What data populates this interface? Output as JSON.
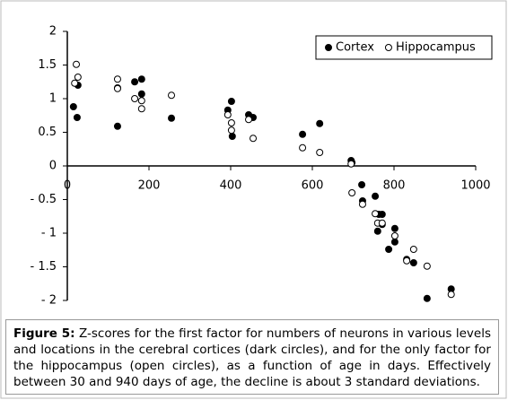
{
  "chart_data": {
    "type": "scatter",
    "caption_label": "Figure 5:",
    "caption": "Z-scores for the first factor for numbers of neurons in various levels and locations in the cerebral cortices (dark circles), and for the only factor for the hippocampus (open circles), as a function of age in days. Effectively between 30 and 940 days of age, the decline is about 3 standard deviations.",
    "xlim": [
      0,
      1000
    ],
    "xticks": [
      0,
      200,
      400,
      600,
      800,
      1000
    ],
    "ylim": [
      -2,
      2
    ],
    "yticks": [
      {
        "value": -2,
        "label": "- 2"
      },
      {
        "value": -1.5,
        "label": "- 1.5"
      },
      {
        "value": -1,
        "label": "- 1"
      },
      {
        "value": -0.5,
        "label": "- 0.5"
      },
      0,
      0.5,
      1,
      1.5,
      2
    ],
    "legend": "top-right",
    "series": [
      {
        "name": "Cortex",
        "color": "#000000",
        "filled": true,
        "x": [
          15,
          24,
          26,
          123,
          123,
          165,
          182,
          182,
          255,
          393,
          402,
          404,
          444,
          455,
          576,
          618,
          695,
          697,
          721,
          723,
          754,
          760,
          763,
          771,
          771,
          802,
          802,
          787,
          831,
          848,
          881,
          940
        ],
        "values": [
          0.88,
          0.72,
          1.2,
          0.59,
          1.16,
          1.25,
          1.29,
          1.07,
          0.71,
          0.83,
          0.96,
          0.44,
          0.76,
          0.72,
          0.47,
          0.63,
          0.08,
          0.05,
          -0.28,
          -0.52,
          -0.45,
          -0.97,
          -0.72,
          -0.72,
          -0.87,
          -0.93,
          -1.13,
          -1.24,
          -1.39,
          -1.44,
          -1.97,
          -1.83
        ]
      },
      {
        "name": "Hippocampus",
        "color": "#000000",
        "filled": false,
        "x": [
          22,
          18,
          26,
          123,
          123,
          165,
          182,
          182,
          255,
          393,
          402,
          402,
          444,
          455,
          576,
          618,
          695,
          697,
          723,
          754,
          760,
          771,
          802,
          831,
          848,
          881,
          940
        ],
        "values": [
          1.51,
          1.23,
          1.32,
          1.29,
          1.15,
          1.0,
          0.97,
          0.85,
          1.05,
          0.76,
          0.64,
          0.53,
          0.69,
          0.41,
          0.27,
          0.2,
          0.03,
          -0.4,
          -0.57,
          -0.71,
          -0.85,
          -0.85,
          -1.04,
          -1.41,
          -1.24,
          -1.49,
          -1.91
        ]
      }
    ]
  }
}
